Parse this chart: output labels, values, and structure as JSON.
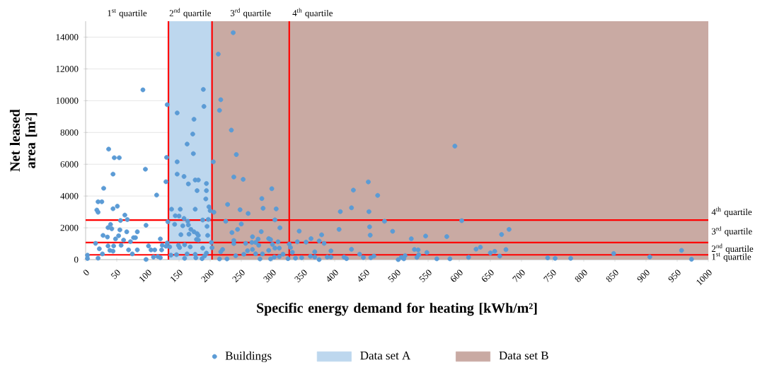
{
  "chart_data": {
    "type": "scatter",
    "xlabel": "Specific energy demand for heating [kWh/m²]",
    "ylabel": "Net leased area [m²]",
    "xlim": [
      0,
      1000
    ],
    "ylim": [
      0,
      15000
    ],
    "xticks": [
      0,
      50,
      100,
      150,
      200,
      250,
      300,
      350,
      400,
      450,
      500,
      550,
      600,
      650,
      700,
      750,
      800,
      850,
      900,
      950,
      1000
    ],
    "yticks": [
      0,
      2000,
      4000,
      6000,
      8000,
      10000,
      12000,
      14000
    ],
    "grid": "y",
    "legend": "bottom",
    "marker": "circle",
    "series": [
      {
        "name": "Buildings",
        "color": "#5b9bd5",
        "x": [
          92,
          37,
          46,
          54,
          44,
          96,
          29,
          20,
          26,
          18,
          20,
          44,
          51,
          114,
          63,
          56,
          67,
          97,
          40,
          36,
          42,
          28,
          35,
          55,
          53,
          61,
          66,
          83,
          77,
          80,
          48,
          72,
          16,
          57,
          36,
          45,
          22,
          69,
          83,
          39,
          44,
          27,
          75,
          101,
          105,
          111,
          120,
          123,
          131,
          122,
          129,
          129,
          130,
          131,
          132,
          3,
          3,
          20,
          97,
          109,
          116,
          120,
          147,
          189,
          190,
          174,
          172,
          163,
          173,
          147,
          205,
          147,
          158,
          165,
          176,
          181,
          194,
          179,
          194,
          193,
          198,
          138,
          152,
          176,
          200,
          206,
          188,
          197,
          144,
          150,
          158,
          164,
          143,
          156,
          165,
          195,
          169,
          174,
          179,
          181,
          178,
          181,
          153,
          166,
          196,
          135,
          149,
          151,
          159,
          168,
          188,
          202,
          203,
          146,
          137,
          159,
          163,
          176,
          177,
          187,
          191,
          194,
          237,
          213,
          217,
          215,
          234,
          242,
          238,
          253,
          299,
          283,
          285,
          306,
          248,
          261,
          228,
          225,
          250,
          304,
          312,
          235,
          244,
          282,
          268,
          277,
          294,
          297,
          238,
          238,
          257,
          267,
          273,
          278,
          300,
          309,
          260,
          268,
          294,
          304,
          311,
          254,
          273,
          284,
          317,
          280,
          297,
          303,
          311,
          325,
          215,
          227,
          241,
          220,
          217,
          327,
          329,
          332,
          337,
          347,
          343,
          340,
          354,
          362,
          375,
          383,
          368,
          361,
          368,
          375,
          388,
          394,
          394,
          379,
          407,
          409,
          427,
          430,
          454,
          469,
          455,
          456,
          457,
          480,
          427,
          415,
          419,
          440,
          446,
          458,
          463,
          593,
          604,
          493,
          523,
          546,
          580,
          668,
          680,
          528,
          534,
          535,
          532,
          548,
          627,
          634,
          650,
          657,
          675,
          665,
          502,
          507,
          511,
          513,
          564,
          585,
          615,
          742,
          754,
          779,
          848,
          906,
          957,
          973
        ],
        "values": [
          10680,
          6950,
          6410,
          6410,
          5380,
          5690,
          4490,
          3640,
          3640,
          3120,
          2980,
          3200,
          3360,
          4060,
          2800,
          2460,
          2520,
          2160,
          2210,
          2010,
          1940,
          1520,
          1420,
          1870,
          1500,
          1230,
          1750,
          1750,
          1380,
          1380,
          1300,
          1130,
          1020,
          900,
          860,
          860,
          680,
          610,
          610,
          580,
          530,
          360,
          360,
          860,
          610,
          610,
          1300,
          900,
          1050,
          610,
          840,
          4900,
          6430,
          9750,
          2380,
          280,
          70,
          90,
          10,
          160,
          190,
          120,
          9230,
          10710,
          9640,
          8830,
          7900,
          7270,
          6670,
          6150,
          6150,
          5380,
          5230,
          4760,
          5010,
          5010,
          4790,
          4340,
          4340,
          3820,
          3320,
          3170,
          3170,
          3170,
          3080,
          2980,
          2490,
          2530,
          2760,
          2740,
          2590,
          2410,
          2220,
          2130,
          2180,
          2090,
          1900,
          1750,
          1640,
          1520,
          1270,
          1230,
          1570,
          1600,
          1520,
          800,
          900,
          760,
          930,
          800,
          720,
          1080,
          750,
          310,
          280,
          80,
          360,
          330,
          110,
          60,
          230,
          410,
          14280,
          12930,
          10060,
          9390,
          8150,
          6610,
          5200,
          5050,
          4460,
          3840,
          3230,
          3190,
          3140,
          2900,
          3470,
          2410,
          2240,
          2500,
          2000,
          1700,
          1900,
          1760,
          1440,
          1290,
          1320,
          1260,
          1200,
          1010,
          1020,
          1080,
          1080,
          900,
          960,
          1120,
          560,
          640,
          580,
          720,
          720,
          340,
          370,
          360,
          340,
          40,
          40,
          160,
          190,
          60,
          40,
          40,
          240,
          640,
          490,
          980,
          760,
          460,
          90,
          120,
          1790,
          1120,
          1100,
          1320,
          1170,
          1020,
          490,
          210,
          160,
          0,
          160,
          160,
          550,
          1560,
          1900,
          3020,
          3260,
          4370,
          4890,
          4040,
          3020,
          2060,
          1540,
          2410,
          650,
          160,
          60,
          340,
          130,
          120,
          220,
          7140,
          2450,
          1780,
          1310,
          1480,
          1450,
          1580,
          1900,
          640,
          610,
          300,
          140,
          450,
          660,
          780,
          420,
          520,
          630,
          220,
          0,
          140,
          50,
          250,
          50,
          50,
          140,
          110,
          80,
          80,
          380,
          170,
          580,
          20
        ]
      }
    ],
    "bands": [
      {
        "axis": "x",
        "from": 133,
        "to": 1000,
        "label": "Data set A",
        "color": "#bdd7ee"
      },
      {
        "axis": "x",
        "from": 203,
        "to": 1000,
        "label": "Data set B",
        "color": "#c9aaa3"
      }
    ],
    "ref_lines": [
      {
        "axis": "x",
        "value": 133,
        "color": "#ff0000"
      },
      {
        "axis": "x",
        "value": 203,
        "color": "#ff0000"
      },
      {
        "axis": "x",
        "value": 327,
        "color": "#ff0000"
      },
      {
        "axis": "y",
        "value": 300,
        "color": "#ff0000"
      },
      {
        "axis": "y",
        "value": 1070,
        "color": "#ff0000"
      },
      {
        "axis": "y",
        "value": 2490,
        "color": "#ff0000"
      }
    ],
    "annotations": [
      "1$^{st}$ quartile",
      "2$^{nd}$ quartile",
      "3$^{rd}$ quartile",
      "4$^{th}$ quartile",
      "4$^{th}$ quartile",
      "3$^{rd}$ quartile",
      "2$^{nd}$ quartile",
      "1$^{st}$ quartile"
    ]
  }
}
